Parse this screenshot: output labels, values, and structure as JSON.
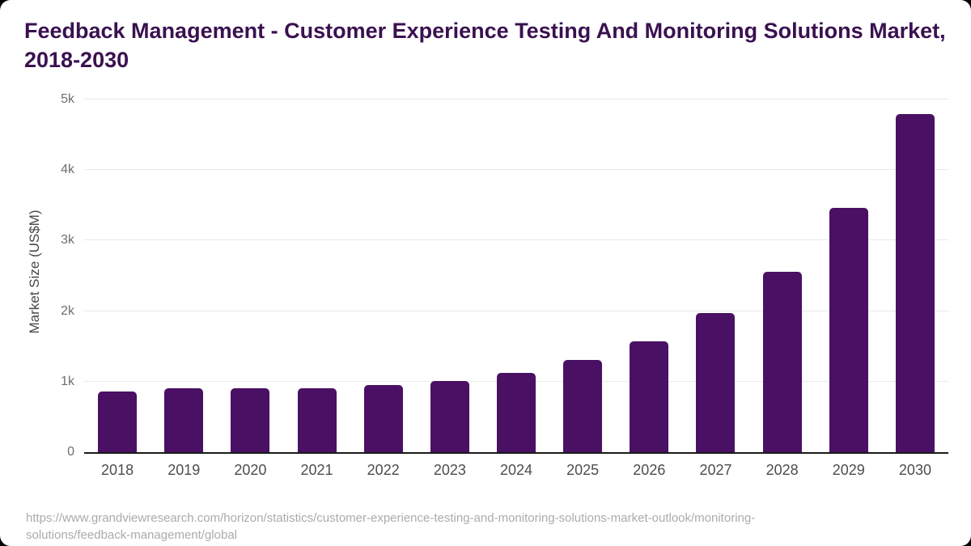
{
  "footer": {
    "source_url": "https://www.grandviewresearch.com/horizon/statistics/customer-experience-testing-and-monitoring-solutions-market-outlook/monitoring-solutions/feedback-management/global"
  },
  "chart_data": {
    "type": "bar",
    "title": "Feedback Management - Customer Experience Testing And Monitoring Solutions Market, 2018-2030",
    "xlabel": "",
    "ylabel": "Market Size (US$M)",
    "categories": [
      "2018",
      "2019",
      "2020",
      "2021",
      "2022",
      "2023",
      "2024",
      "2025",
      "2026",
      "2027",
      "2028",
      "2029",
      "2030"
    ],
    "values": [
      860,
      905,
      905,
      910,
      950,
      1015,
      1120,
      1310,
      1575,
      1970,
      2555,
      3465,
      4790
    ],
    "unit": "US$M",
    "ylim": [
      0,
      5000
    ],
    "yticks": [
      {
        "value": 0,
        "label": "0"
      },
      {
        "value": 1000,
        "label": "1k"
      },
      {
        "value": 2000,
        "label": "2k"
      },
      {
        "value": 3000,
        "label": "3k"
      },
      {
        "value": 4000,
        "label": "4k"
      },
      {
        "value": 5000,
        "label": "5k"
      }
    ],
    "grid": true,
    "legend": false,
    "colors": {
      "bar": "#4a1064",
      "title_text": "#3a1150",
      "gridline": "#e9e9e9",
      "axis_line": "#1a1a1a",
      "x_tick_text": "#4d4d4d",
      "y_tick_text": "#6e6e6e",
      "y_axis_title_text": "#474747",
      "source_text": "#ababab",
      "card_bg": "#ffffff",
      "page_bg": "#000000"
    }
  }
}
